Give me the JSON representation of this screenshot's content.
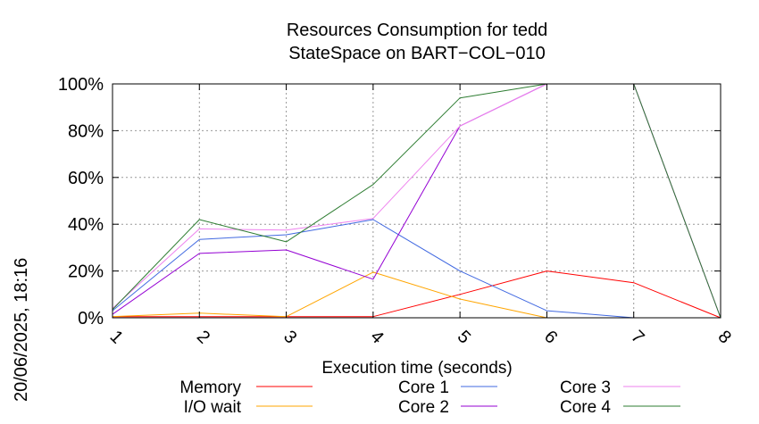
{
  "chart_data": {
    "type": "line",
    "title": [
      "Resources Consumption for tedd",
      "StateSpace on BART−COL−010"
    ],
    "xlabel": "Execution time (seconds)",
    "ylabel": "",
    "side_label": "20/06/2025, 18:16",
    "x": [
      1,
      2,
      3,
      4,
      5,
      6,
      7,
      8
    ],
    "x_ticks": [
      "1",
      "2",
      "3",
      "4",
      "5",
      "6",
      "7",
      "8"
    ],
    "y_ticks": [
      "0%",
      "20%",
      "40%",
      "60%",
      "80%",
      "100%"
    ],
    "ylim": [
      0,
      100
    ],
    "xlim": [
      1,
      8
    ],
    "grid": true,
    "legend_position": "bottom",
    "series": [
      {
        "name": "Memory",
        "color": "#ff0000",
        "values": [
          0.5,
          0.5,
          0.5,
          0.5,
          10,
          20,
          15,
          0
        ]
      },
      {
        "name": "I/O wait",
        "color": "#ffa500",
        "values": [
          0.5,
          2,
          0.5,
          19.5,
          8,
          0,
          null,
          null
        ]
      },
      {
        "name": "Core 1",
        "color": "#4169e1",
        "values": [
          3,
          33.5,
          35.5,
          42,
          20,
          3,
          0,
          null
        ]
      },
      {
        "name": "Core 2",
        "color": "#9400d3",
        "values": [
          1.5,
          27.5,
          29,
          16.5,
          82,
          100,
          100,
          0
        ]
      },
      {
        "name": "Core 3",
        "color": "#ee82ee",
        "values": [
          4,
          38,
          37.5,
          42.5,
          82,
          100,
          100,
          0
        ]
      },
      {
        "name": "Core 4",
        "color": "#2e7d32",
        "values": [
          3.5,
          42,
          32.5,
          57,
          94,
          100,
          100,
          0
        ]
      }
    ]
  }
}
